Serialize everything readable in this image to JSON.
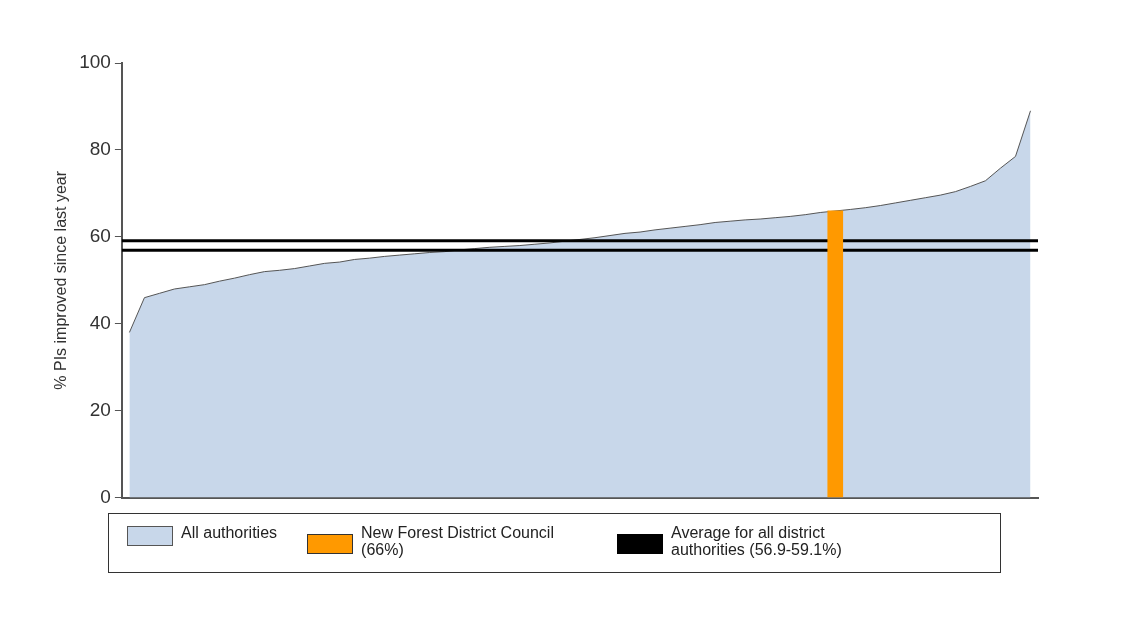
{
  "chart_data": {
    "type": "area",
    "ylabel": "% PIs improved since last year",
    "categories": [
      null,
      null,
      null,
      null,
      null,
      null,
      null,
      null,
      null,
      null,
      null,
      null,
      null,
      null,
      null,
      null,
      null,
      null,
      null,
      null,
      null,
      null,
      null,
      null,
      null,
      null,
      null,
      null,
      null,
      null,
      null,
      null,
      null,
      null,
      null,
      null,
      null,
      null,
      null,
      null,
      null,
      null,
      null,
      null,
      null,
      null,
      null,
      null,
      null,
      null,
      null,
      null,
      null,
      null,
      null,
      null,
      null,
      null,
      null,
      null,
      null
    ],
    "series": [
      {
        "name": "All authorities",
        "color": "#c8d7ea",
        "values": [
          38,
          46,
          47,
          48,
          48.5,
          49,
          49.8,
          50.5,
          51.3,
          52,
          52.3,
          52.7,
          53.3,
          53.9,
          54.2,
          54.8,
          55.1,
          55.5,
          55.8,
          56.1,
          56.4,
          56.6,
          57,
          57.3,
          57.6,
          57.8,
          58,
          58.3,
          58.6,
          59,
          59.4,
          59.8,
          60.3,
          60.8,
          61.1,
          61.6,
          62,
          62.4,
          62.8,
          63.3,
          63.6,
          63.9,
          64.1,
          64.4,
          64.7,
          65.1,
          65.6,
          null,
          66.3,
          66.7,
          67.2,
          67.8,
          68.4,
          69,
          69.6,
          70.4,
          71.6,
          72.9,
          75.8,
          78.5,
          89
        ]
      },
      {
        "name": "New Forest District Council (66%)",
        "type": "bar",
        "color": "#ff9900",
        "values": [
          null,
          null,
          null,
          null,
          null,
          null,
          null,
          null,
          null,
          null,
          null,
          null,
          null,
          null,
          null,
          null,
          null,
          null,
          null,
          null,
          null,
          null,
          null,
          null,
          null,
          null,
          null,
          null,
          null,
          null,
          null,
          null,
          null,
          null,
          null,
          null,
          null,
          null,
          null,
          null,
          null,
          null,
          null,
          null,
          null,
          null,
          null,
          66,
          null,
          null,
          null,
          null,
          null,
          null,
          null,
          null,
          null,
          null,
          null,
          null,
          null
        ]
      }
    ],
    "ref_lines": [
      {
        "axis": "y",
        "value": 56.9,
        "label": "Average for all district authorities (56.9-59.1%)",
        "color": "#000000"
      },
      {
        "axis": "y",
        "value": 59.1,
        "color": "#000000"
      }
    ],
    "ylim": [
      0,
      100
    ],
    "yticks": [
      0,
      20,
      40,
      60,
      80,
      100
    ],
    "grid": false,
    "legend": "bottom",
    "tick_labels": "y",
    "marker": "none",
    "line_style": "solid"
  }
}
